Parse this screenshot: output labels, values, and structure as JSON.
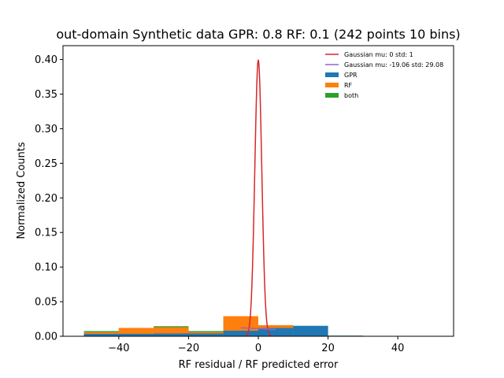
{
  "chart_data": {
    "type": "bar",
    "title": "out-domain Synthetic data GPR: 0.8 RF: 0.1 (242 points 10 bins)",
    "xlabel": "RF residual / RF predicted error",
    "ylabel": "Normalized Counts",
    "xlim": [
      -56,
      56
    ],
    "ylim": [
      0,
      0.42
    ],
    "xticks": [
      -40,
      -20,
      0,
      20,
      40
    ],
    "yticks": [
      0.0,
      0.05,
      0.1,
      0.15,
      0.2,
      0.25,
      0.3,
      0.35,
      0.4
    ],
    "xtick_labels": [
      "−40",
      "−20",
      "0",
      "20",
      "40"
    ],
    "ytick_labels": [
      "0.00",
      "0.05",
      "0.10",
      "0.15",
      "0.20",
      "0.25",
      "0.30",
      "0.35",
      "0.40"
    ],
    "bin_edges": [
      -50,
      -40,
      -30,
      -20,
      -10,
      0,
      10,
      20,
      30,
      40,
      50
    ],
    "series": [
      {
        "name": "GPR",
        "color": "#1f77b4",
        "values": [
          0.0035,
          0.0035,
          0.004,
          0.004,
          0.008,
          0.012,
          0.015,
          0.0008,
          0.0,
          0.0
        ]
      },
      {
        "name": "RF",
        "color": "#ff7f0e",
        "values": [
          0.006,
          0.012,
          0.013,
          0.006,
          0.029,
          0.016,
          0.0,
          0.0,
          0.0,
          0.0
        ]
      },
      {
        "name": "both",
        "color": "#2ca02c",
        "values": [
          0.0075,
          0.012,
          0.0145,
          0.0075,
          0.029,
          0.016,
          0.015,
          0.0008,
          0.0,
          0.0
        ]
      }
    ],
    "curves": [
      {
        "name": "Gaussian mu: 0 std: 1",
        "color": "#d62728",
        "mu": 0,
        "std": 1
      },
      {
        "name": "Gaussian mu: -19.06 std: 29.08",
        "color": "#9467bd",
        "mu": -19.06,
        "std": 29.08
      }
    ],
    "legend_position": "top-right",
    "grid": false
  }
}
